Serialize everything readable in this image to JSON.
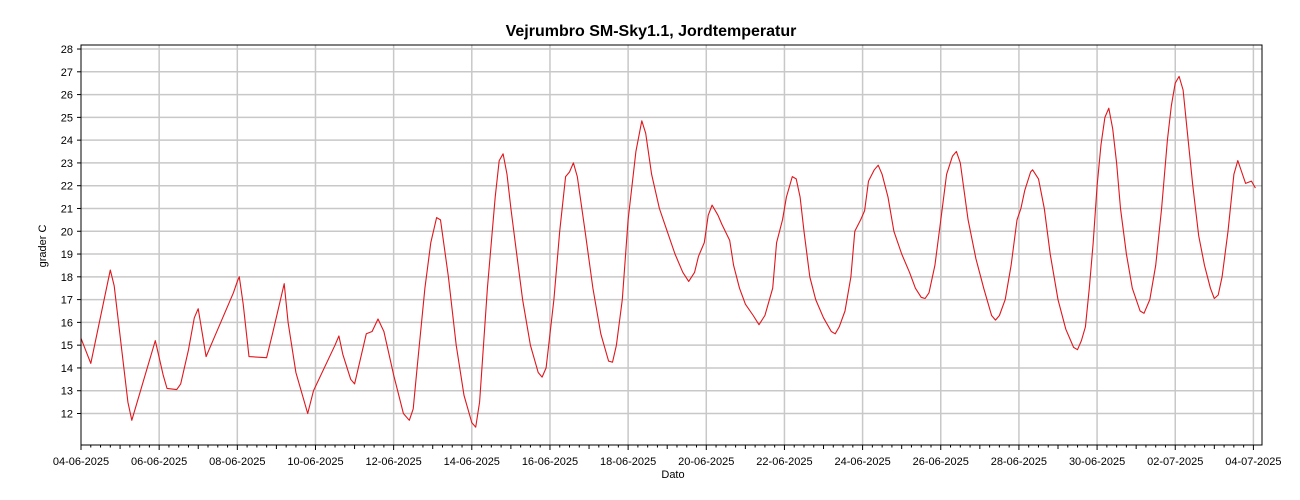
{
  "chart_data": {
    "type": "line",
    "title": "Vejrumbro SM-Sky1.1, Jordtemperatur",
    "xlabel": "Dato",
    "ylabel": "grader C",
    "x_tick_labels": [
      "04-06-2025",
      "06-06-2025",
      "08-06-2025",
      "10-06-2025",
      "12-06-2025",
      "14-06-2025",
      "16-06-2025",
      "18-06-2025",
      "20-06-2025",
      "22-06-2025",
      "24-06-2025",
      "26-06-2025",
      "28-06-2025",
      "30-06-2025",
      "02-07-2025",
      "04-07-2025"
    ],
    "y_ticks": [
      12,
      13,
      14,
      15,
      16,
      17,
      18,
      19,
      20,
      21,
      22,
      23,
      24,
      25,
      26,
      27,
      28
    ],
    "xlim_days": [
      0,
      30.5
    ],
    "ylim": [
      11.4,
      28.3
    ],
    "grid": true,
    "legend": "none",
    "series": [
      {
        "color": "#e0161c",
        "points": [
          [
            0.0,
            15.3
          ],
          [
            0.25,
            14.2
          ],
          [
            0.75,
            18.3
          ],
          [
            0.85,
            17.6
          ],
          [
            1.2,
            12.5
          ],
          [
            1.3,
            11.7
          ],
          [
            1.9,
            15.2
          ],
          [
            2.1,
            13.7
          ],
          [
            2.2,
            13.1
          ],
          [
            2.45,
            13.05
          ],
          [
            2.55,
            13.3
          ],
          [
            2.75,
            14.8
          ],
          [
            2.9,
            16.2
          ],
          [
            3.0,
            16.6
          ],
          [
            3.2,
            14.5
          ],
          [
            3.4,
            15.3
          ],
          [
            3.9,
            17.3
          ],
          [
            4.0,
            17.8
          ],
          [
            4.05,
            18.0
          ],
          [
            4.15,
            16.8
          ],
          [
            4.3,
            14.5
          ],
          [
            4.75,
            14.45
          ],
          [
            4.9,
            15.5
          ],
          [
            5.2,
            17.7
          ],
          [
            5.3,
            16.0
          ],
          [
            5.5,
            13.8
          ],
          [
            5.8,
            12.0
          ],
          [
            5.95,
            13.0
          ],
          [
            6.5,
            15.0
          ],
          [
            6.6,
            15.4
          ],
          [
            6.7,
            14.6
          ],
          [
            6.9,
            13.5
          ],
          [
            7.0,
            13.3
          ],
          [
            7.3,
            15.5
          ],
          [
            7.45,
            15.6
          ],
          [
            7.6,
            16.15
          ],
          [
            7.75,
            15.6
          ],
          [
            8.0,
            13.7
          ],
          [
            8.25,
            12.0
          ],
          [
            8.4,
            11.7
          ],
          [
            8.5,
            12.2
          ],
          [
            8.6,
            14.0
          ],
          [
            8.8,
            17.5
          ],
          [
            8.95,
            19.5
          ],
          [
            9.1,
            20.6
          ],
          [
            9.2,
            20.5
          ],
          [
            9.4,
            18.0
          ],
          [
            9.6,
            15.0
          ],
          [
            9.8,
            12.8
          ],
          [
            10.0,
            11.6
          ],
          [
            10.1,
            11.4
          ],
          [
            10.2,
            12.5
          ],
          [
            10.4,
            17.5
          ],
          [
            10.6,
            21.5
          ],
          [
            10.7,
            23.1
          ],
          [
            10.8,
            23.4
          ],
          [
            10.9,
            22.5
          ],
          [
            11.0,
            21.0
          ],
          [
            11.15,
            19.0
          ],
          [
            11.3,
            17.0
          ],
          [
            11.5,
            15.0
          ],
          [
            11.7,
            13.8
          ],
          [
            11.8,
            13.6
          ],
          [
            11.9,
            14.0
          ],
          [
            12.1,
            17.0
          ],
          [
            12.25,
            20.0
          ],
          [
            12.4,
            22.4
          ],
          [
            12.5,
            22.6
          ],
          [
            12.6,
            23.0
          ],
          [
            12.7,
            22.4
          ],
          [
            12.9,
            20.0
          ],
          [
            13.1,
            17.5
          ],
          [
            13.3,
            15.5
          ],
          [
            13.5,
            14.3
          ],
          [
            13.6,
            14.25
          ],
          [
            13.7,
            15.0
          ],
          [
            13.85,
            17.0
          ],
          [
            14.0,
            20.5
          ],
          [
            14.2,
            23.5
          ],
          [
            14.35,
            24.85
          ],
          [
            14.45,
            24.3
          ],
          [
            14.6,
            22.5
          ],
          [
            14.8,
            21.0
          ],
          [
            15.0,
            20.0
          ],
          [
            15.2,
            19.0
          ],
          [
            15.4,
            18.2
          ],
          [
            15.55,
            17.8
          ],
          [
            15.7,
            18.2
          ],
          [
            15.8,
            18.9
          ],
          [
            15.95,
            19.5
          ],
          [
            16.05,
            20.7
          ],
          [
            16.15,
            21.15
          ],
          [
            16.3,
            20.7
          ],
          [
            16.4,
            20.3
          ],
          [
            16.6,
            19.6
          ],
          [
            16.7,
            18.5
          ],
          [
            16.85,
            17.5
          ],
          [
            17.0,
            16.8
          ],
          [
            17.2,
            16.3
          ],
          [
            17.35,
            15.9
          ],
          [
            17.5,
            16.3
          ],
          [
            17.7,
            17.5
          ],
          [
            17.8,
            19.5
          ],
          [
            17.95,
            20.5
          ],
          [
            18.05,
            21.5
          ],
          [
            18.2,
            22.4
          ],
          [
            18.3,
            22.3
          ],
          [
            18.4,
            21.5
          ],
          [
            18.5,
            20.0
          ],
          [
            18.65,
            18.0
          ],
          [
            18.8,
            17.0
          ],
          [
            19.0,
            16.2
          ],
          [
            19.2,
            15.6
          ],
          [
            19.3,
            15.5
          ],
          [
            19.4,
            15.8
          ],
          [
            19.55,
            16.5
          ],
          [
            19.7,
            18.0
          ],
          [
            19.8,
            20.0
          ],
          [
            19.95,
            20.5
          ],
          [
            20.05,
            20.9
          ],
          [
            20.15,
            22.2
          ],
          [
            20.3,
            22.7
          ],
          [
            20.4,
            22.9
          ],
          [
            20.5,
            22.5
          ],
          [
            20.65,
            21.5
          ],
          [
            20.8,
            20.0
          ],
          [
            21.0,
            19.0
          ],
          [
            21.2,
            18.2
          ],
          [
            21.35,
            17.5
          ],
          [
            21.5,
            17.1
          ],
          [
            21.6,
            17.05
          ],
          [
            21.7,
            17.3
          ],
          [
            21.85,
            18.5
          ],
          [
            22.0,
            20.5
          ],
          [
            22.15,
            22.5
          ],
          [
            22.3,
            23.3
          ],
          [
            22.4,
            23.5
          ],
          [
            22.5,
            23.0
          ],
          [
            22.7,
            20.5
          ],
          [
            22.9,
            18.8
          ],
          [
            23.1,
            17.5
          ],
          [
            23.3,
            16.3
          ],
          [
            23.4,
            16.1
          ],
          [
            23.5,
            16.3
          ],
          [
            23.65,
            17.0
          ],
          [
            23.8,
            18.5
          ],
          [
            23.95,
            20.5
          ],
          [
            24.05,
            21.0
          ],
          [
            24.15,
            21.8
          ],
          [
            24.3,
            22.6
          ],
          [
            24.35,
            22.7
          ],
          [
            24.5,
            22.3
          ],
          [
            24.65,
            21.0
          ],
          [
            24.8,
            19.0
          ],
          [
            25.0,
            17.0
          ],
          [
            25.2,
            15.7
          ],
          [
            25.4,
            14.9
          ],
          [
            25.5,
            14.8
          ],
          [
            25.6,
            15.2
          ],
          [
            25.7,
            15.8
          ],
          [
            25.8,
            17.5
          ],
          [
            25.9,
            19.5
          ],
          [
            26.0,
            22.0
          ],
          [
            26.1,
            23.8
          ],
          [
            26.2,
            25.0
          ],
          [
            26.3,
            25.4
          ],
          [
            26.4,
            24.5
          ],
          [
            26.5,
            23.0
          ],
          [
            26.6,
            21.0
          ],
          [
            26.75,
            19.0
          ],
          [
            26.9,
            17.5
          ],
          [
            27.1,
            16.5
          ],
          [
            27.2,
            16.4
          ],
          [
            27.35,
            17.0
          ],
          [
            27.5,
            18.5
          ],
          [
            27.65,
            21.0
          ],
          [
            27.8,
            24.0
          ],
          [
            27.9,
            25.5
          ],
          [
            28.0,
            26.5
          ],
          [
            28.1,
            26.8
          ],
          [
            28.2,
            26.2
          ],
          [
            28.3,
            24.5
          ],
          [
            28.45,
            22.0
          ],
          [
            28.6,
            19.8
          ],
          [
            28.75,
            18.5
          ],
          [
            28.9,
            17.5
          ],
          [
            29.0,
            17.05
          ],
          [
            29.1,
            17.2
          ],
          [
            29.2,
            18.0
          ],
          [
            29.35,
            20.0
          ],
          [
            29.5,
            22.5
          ],
          [
            29.6,
            23.1
          ],
          [
            29.7,
            22.6
          ],
          [
            29.8,
            22.1
          ],
          [
            29.95,
            22.2
          ],
          [
            30.05,
            21.9
          ]
        ]
      }
    ]
  }
}
